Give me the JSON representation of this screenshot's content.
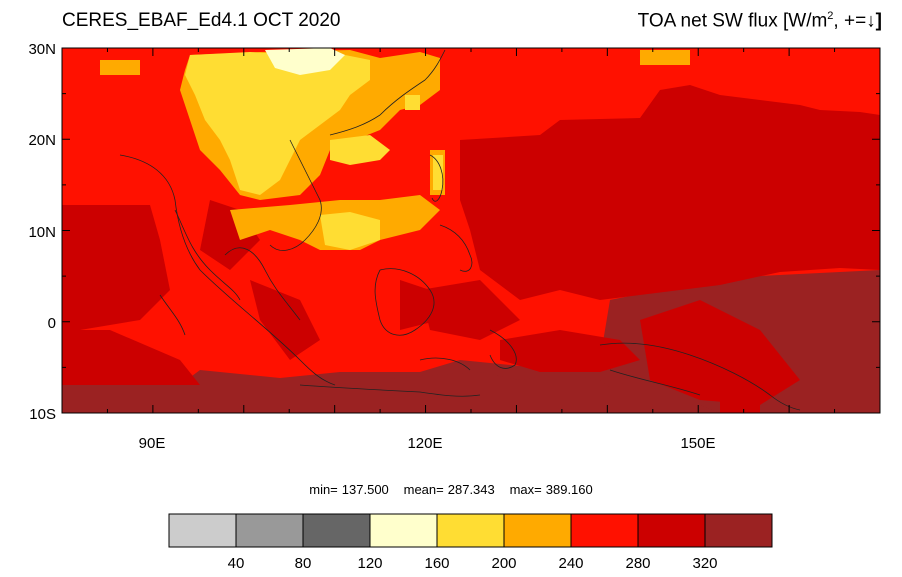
{
  "header": {
    "title_left": "CERES_EBAF_Ed4.1 OCT 2020",
    "title_right_prefix": "TOA net SW flux [W/m",
    "title_right_sup": "2",
    "title_right_suffix": ", +=",
    "title_right_arrow": "↓",
    "title_right_close": "]"
  },
  "axes": {
    "lat_labels": [
      "30N",
      "20N",
      "10N",
      "0",
      "10S"
    ],
    "lon_labels": [
      "90E",
      "120E",
      "150E"
    ]
  },
  "stats": {
    "min_label": "min=",
    "min_value": "137.500",
    "mean_label": "mean=",
    "mean_value": "287.343",
    "max_label": "max=",
    "max_value": "389.160"
  },
  "colorbar": {
    "colors": [
      "#cccccc",
      "#999999",
      "#666666",
      "#ffffcc",
      "#ffdd33",
      "#ffaa00",
      "#ff1100",
      "#cc0000",
      "#9b2222"
    ],
    "tick_labels": [
      "40",
      "80",
      "120",
      "160",
      "200",
      "240",
      "280",
      "320"
    ]
  }
}
